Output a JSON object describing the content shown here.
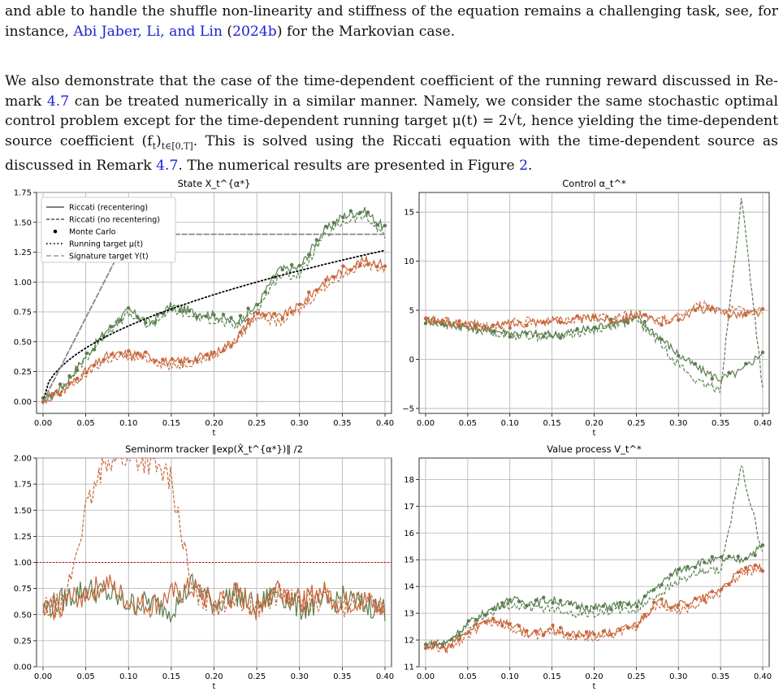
{
  "text": {
    "p1_line1": "and able to handle the shuffle non-linearity and stiffness of the equation remains a challenging task, see, for",
    "p1_prefix": "instance,",
    "p1_cite_authors": "Abi Jaber, Li, and Lin",
    "p1_cite_year_open": " (",
    "p1_cite_year": "2024b",
    "p1_cite_year_close": ")",
    "p1_suffix": " for the Markovian case.",
    "p2_a": "We also demonstrate that the case of the time-dependent coefficient of the running reward discussed in Re-mark ",
    "p2_ref1": "4.7",
    "p2_b": " can be treated numerically in a similar manner. Namely, we consider the same stochastic optimal control problem except for the time-dependent running target μ(t) = 2√t, hence yielding the time-dependent source coefficient (f",
    "p2_c": ")",
    "p2_sub": "t∈[0,T]",
    "p2_d": ". This is solved using the Riccati equation with the time-dependent source as discussed in Remark ",
    "p2_ref2": "4.7",
    "p2_e": ". The numerical results are presented in Figure ",
    "p2_ref3": "2",
    "p2_f": ".",
    "p2_sub_t": "t"
  },
  "colors": {
    "link": "#1d23d6",
    "green": "#5a7f4f",
    "orange": "#c8683d",
    "target": "#000000",
    "signature": "#888888",
    "threshold": "#cc0000",
    "grid": "#b0b0b0"
  },
  "figure": {
    "xticks": [
      "0.00",
      "0.05",
      "0.10",
      "0.15",
      "0.20",
      "0.25",
      "0.30",
      "0.35",
      "0.40"
    ],
    "xlabel": "t",
    "legend": [
      "Riccati (recentering)",
      "Riccati (no recentering)",
      "Monte Carlo",
      "Running target μ(t)",
      "Signature target Y(t)"
    ]
  },
  "chart_data": [
    {
      "type": "line",
      "title": "State X_t^{α*}",
      "xlabel": "t",
      "xlim": [
        0,
        0.4
      ],
      "ylim": [
        -0.1,
        1.75
      ],
      "yticks": [
        "0.00",
        "0.25",
        "0.50",
        "0.75",
        "1.00",
        "1.25",
        "1.50",
        "1.75"
      ],
      "x": [
        0,
        0.025,
        0.05,
        0.075,
        0.1,
        0.125,
        0.15,
        0.175,
        0.2,
        0.225,
        0.25,
        0.275,
        0.3,
        0.325,
        0.35,
        0.375,
        0.4
      ],
      "series": [
        {
          "name": "Riccati (recentering)",
          "color": "green",
          "values": [
            0,
            0.14,
            0.38,
            0.6,
            0.76,
            0.66,
            0.8,
            0.75,
            0.72,
            0.66,
            0.8,
            1.1,
            1.12,
            1.4,
            1.55,
            1.6,
            1.45
          ]
        },
        {
          "name": "Riccati (no recentering)",
          "color": "green",
          "values": [
            0,
            0.12,
            0.36,
            0.58,
            0.73,
            0.63,
            0.77,
            0.71,
            0.68,
            0.62,
            0.77,
            1.05,
            1.06,
            1.35,
            1.5,
            1.55,
            1.4
          ]
        },
        {
          "name": "Riccati (recentering)",
          "color": "orange",
          "values": [
            0,
            0.1,
            0.25,
            0.38,
            0.4,
            0.38,
            0.32,
            0.36,
            0.4,
            0.52,
            0.75,
            0.7,
            0.8,
            0.98,
            1.1,
            1.18,
            1.15
          ]
        },
        {
          "name": "Riccati (no recentering)",
          "color": "orange",
          "values": [
            0,
            0.09,
            0.23,
            0.35,
            0.37,
            0.35,
            0.29,
            0.33,
            0.38,
            0.5,
            0.72,
            0.66,
            0.76,
            0.94,
            1.06,
            1.15,
            1.12
          ]
        },
        {
          "name": "Running target μ(t)",
          "color": "target",
          "values": [
            0,
            0.32,
            0.45,
            0.55,
            0.63,
            0.71,
            0.77,
            0.84,
            0.89,
            0.95,
            1.0,
            1.05,
            1.1,
            1.14,
            1.18,
            1.22,
            1.26
          ]
        },
        {
          "name": "Signature target Y(t)",
          "color": "signature",
          "values": [
            0,
            0.35,
            0.7,
            1.05,
            1.4,
            1.4,
            1.4,
            1.4,
            1.4,
            1.4,
            1.4,
            1.4,
            1.4,
            1.4,
            1.4,
            1.4,
            1.4
          ]
        }
      ]
    },
    {
      "type": "line",
      "title": "Control α_t^*",
      "xlabel": "t",
      "xlim": [
        0,
        0.4
      ],
      "ylim": [
        -5.5,
        17
      ],
      "yticks": [
        "−5",
        "0",
        "5",
        "10",
        "15"
      ],
      "x": [
        0,
        0.025,
        0.05,
        0.075,
        0.1,
        0.125,
        0.15,
        0.175,
        0.2,
        0.225,
        0.25,
        0.275,
        0.3,
        0.325,
        0.35,
        0.375,
        0.4
      ],
      "series": [
        {
          "name": "Riccati (recentering)",
          "color": "green",
          "values": [
            4,
            3.6,
            3.3,
            3.0,
            2.7,
            2.6,
            2.5,
            2.8,
            3.2,
            3.8,
            4.2,
            2.5,
            0.5,
            -1.0,
            -2.0,
            -1.2,
            0.8
          ]
        },
        {
          "name": "Riccati (no recentering)",
          "color": "green",
          "values": [
            4,
            3.5,
            3.2,
            2.9,
            2.5,
            2.4,
            2.3,
            2.6,
            3.0,
            3.6,
            4.0,
            2.0,
            -0.5,
            -2.5,
            -3.0,
            16.5,
            -3.0
          ]
        },
        {
          "name": "Riccati (recentering)",
          "color": "orange",
          "values": [
            4,
            3.8,
            3.5,
            3.3,
            3.6,
            3.8,
            3.9,
            4.0,
            4.2,
            4.1,
            4.6,
            3.8,
            4.2,
            5.2,
            4.8,
            4.6,
            4.8
          ]
        },
        {
          "name": "Riccati (no recentering)",
          "color": "orange",
          "values": [
            4,
            3.9,
            3.6,
            3.4,
            3.7,
            3.9,
            4.0,
            4.1,
            4.3,
            4.2,
            4.7,
            3.9,
            4.4,
            5.6,
            5.1,
            4.9,
            5.0
          ]
        }
      ]
    },
    {
      "type": "line",
      "title": "Seminorm tracker ‖exp(X̂_t^{α*})‖ /2",
      "xlabel": "t",
      "xlim": [
        0,
        0.4
      ],
      "ylim": [
        0,
        2.0
      ],
      "yticks": [
        "0.00",
        "0.25",
        "0.50",
        "0.75",
        "1.00",
        "1.25",
        "1.50",
        "1.75",
        "2.00"
      ],
      "threshold": 1.0,
      "x": [
        0,
        0.025,
        0.05,
        0.075,
        0.1,
        0.125,
        0.15,
        0.175,
        0.2,
        0.225,
        0.25,
        0.275,
        0.3,
        0.325,
        0.35,
        0.375,
        0.4
      ],
      "series": [
        {
          "name": "Riccati (recentering)",
          "color": "green",
          "values": [
            0.55,
            0.65,
            0.75,
            0.7,
            0.6,
            0.62,
            0.55,
            0.8,
            0.6,
            0.7,
            0.58,
            0.72,
            0.56,
            0.6,
            0.66,
            0.6,
            0.55
          ]
        },
        {
          "name": "Riccati (no recentering)",
          "color": "orange",
          "values": [
            0.55,
            0.6,
            1.5,
            2.0,
            2.0,
            1.95,
            1.8,
            0.7,
            0.6,
            0.66,
            0.58,
            0.7,
            0.6,
            0.66,
            0.58,
            0.62,
            0.58
          ]
        },
        {
          "name": "Riccati (recentering)",
          "color": "orange",
          "values": [
            0.5,
            0.62,
            0.7,
            0.8,
            0.62,
            0.58,
            0.68,
            0.75,
            0.6,
            0.7,
            0.56,
            0.78,
            0.62,
            0.72,
            0.6,
            0.64,
            0.52
          ]
        }
      ]
    },
    {
      "type": "line",
      "title": "Value process V_t^*",
      "xlabel": "t",
      "xlim": [
        0,
        0.4
      ],
      "ylim": [
        11,
        18.8
      ],
      "yticks": [
        "11",
        "12",
        "13",
        "14",
        "15",
        "16",
        "17",
        "18"
      ],
      "x": [
        0,
        0.025,
        0.05,
        0.075,
        0.1,
        0.125,
        0.15,
        0.175,
        0.2,
        0.225,
        0.25,
        0.275,
        0.3,
        0.325,
        0.35,
        0.375,
        0.4
      ],
      "series": [
        {
          "name": "Riccati (recentering)",
          "color": "green",
          "values": [
            11.8,
            11.9,
            12.6,
            13.1,
            13.5,
            13.4,
            13.5,
            13.3,
            13.2,
            13.3,
            13.3,
            14.0,
            14.6,
            14.9,
            15.0,
            15.0,
            15.5
          ]
        },
        {
          "name": "Riccati (no recentering)",
          "color": "green",
          "values": [
            11.8,
            11.9,
            12.5,
            13.0,
            13.3,
            13.2,
            13.2,
            13.0,
            13.0,
            13.1,
            13.1,
            13.7,
            14.2,
            14.5,
            14.6,
            18.5,
            15.2
          ]
        },
        {
          "name": "Riccati (recentering)",
          "color": "orange",
          "values": [
            11.8,
            11.7,
            12.3,
            12.8,
            12.6,
            12.2,
            12.4,
            12.2,
            12.2,
            12.3,
            12.6,
            13.4,
            13.3,
            13.5,
            13.9,
            14.6,
            14.7
          ]
        },
        {
          "name": "Riccati (no recentering)",
          "color": "orange",
          "values": [
            11.8,
            11.6,
            12.2,
            12.7,
            12.5,
            12.1,
            12.3,
            12.1,
            12.1,
            12.2,
            12.5,
            13.3,
            13.1,
            13.3,
            13.8,
            14.5,
            14.6
          ]
        }
      ]
    }
  ]
}
